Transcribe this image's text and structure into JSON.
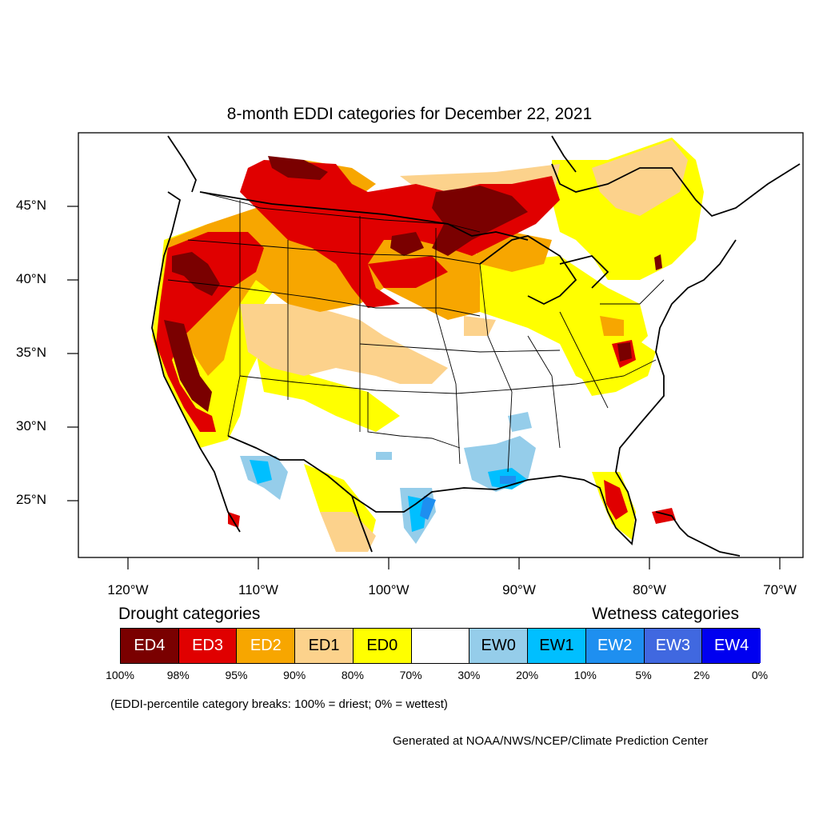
{
  "map": {
    "title": "8-month EDDI categories for December 22, 2021",
    "latitude_labels": [
      "45°N",
      "40°N",
      "35°N",
      "30°N",
      "25°N"
    ],
    "longitude_labels": [
      "120°W",
      "110°W",
      "100°W",
      "90°W",
      "80°W",
      "70°W"
    ],
    "colors": {
      "ED4": "#7a0000",
      "ED3": "#e00000",
      "ED2": "#f7a600",
      "ED1": "#fcd28c",
      "ED0": "#ffff00",
      "neutral": "#ffffff",
      "EW0": "#95cdea",
      "EW1": "#00bfff",
      "EW2": "#1e8ff0",
      "EW3": "#4068e0",
      "EW4": "#0000f0"
    }
  },
  "legend": {
    "drought_label": "Drought categories",
    "wetness_label": "Wetness categories",
    "categories": [
      {
        "label": "ED4",
        "color": "#7a0000",
        "text_color": "#ffffff"
      },
      {
        "label": "ED3",
        "color": "#e00000",
        "text_color": "#ffffff"
      },
      {
        "label": "ED2",
        "color": "#f7a600",
        "text_color": "#ffffff"
      },
      {
        "label": "ED1",
        "color": "#fcd28c",
        "text_color": "#000000"
      },
      {
        "label": "ED0",
        "color": "#ffff00",
        "text_color": "#000000"
      },
      {
        "label": "",
        "color": "#ffffff",
        "text_color": "#000000"
      },
      {
        "label": "EW0",
        "color": "#95cdea",
        "text_color": "#000000"
      },
      {
        "label": "EW1",
        "color": "#00bfff",
        "text_color": "#000000"
      },
      {
        "label": "EW2",
        "color": "#1e8ff0",
        "text_color": "#ffffff"
      },
      {
        "label": "EW3",
        "color": "#4068e0",
        "text_color": "#ffffff"
      },
      {
        "label": "EW4",
        "color": "#0000f0",
        "text_color": "#ffffff"
      }
    ],
    "breaks": [
      "100%",
      "98%",
      "95%",
      "90%",
      "80%",
      "70%",
      "30%",
      "20%",
      "10%",
      "5%",
      "2%",
      "0%"
    ]
  },
  "footnote": "(EDDI-percentile category breaks: 100% = driest; 0% = wettest)",
  "credit": "Generated at NOAA/NWS/NCEP/Climate Prediction Center"
}
